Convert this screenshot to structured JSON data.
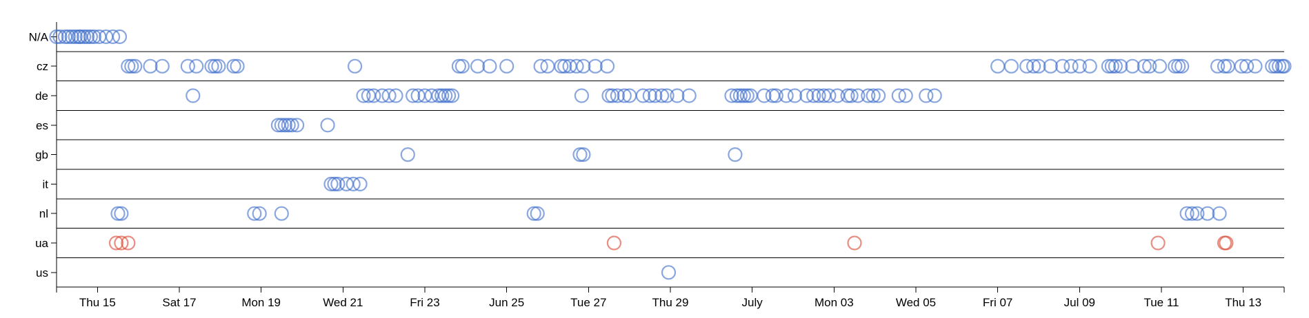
{
  "chart_data": {
    "type": "scatter",
    "title": "",
    "xlabel": "",
    "ylabel": "",
    "x_axis": {
      "scale": "time",
      "domain": [
        "2023-06-14",
        "2023-07-14"
      ],
      "ticks": [
        {
          "date": "2023-06-15",
          "label": "Thu 15"
        },
        {
          "date": "2023-06-17",
          "label": "Sat 17"
        },
        {
          "date": "2023-06-19",
          "label": "Mon 19"
        },
        {
          "date": "2023-06-21",
          "label": "Wed 21"
        },
        {
          "date": "2023-06-23",
          "label": "Fri 23"
        },
        {
          "date": "2023-06-25",
          "label": "Jun 25"
        },
        {
          "date": "2023-06-27",
          "label": "Tue 27"
        },
        {
          "date": "2023-06-29",
          "label": "Thu 29"
        },
        {
          "date": "2023-07-01",
          "label": "July"
        },
        {
          "date": "2023-07-03",
          "label": "Mon 03"
        },
        {
          "date": "2023-07-05",
          "label": "Wed 05"
        },
        {
          "date": "2023-07-07",
          "label": "Fri 07"
        },
        {
          "date": "2023-07-09",
          "label": "Jul 09"
        },
        {
          "date": "2023-07-11",
          "label": "Tue 11"
        },
        {
          "date": "2023-07-13",
          "label": "Thu 13"
        }
      ]
    },
    "categories": [
      "N/A",
      "cz",
      "de",
      "es",
      "gb",
      "it",
      "nl",
      "ua",
      "us"
    ],
    "colors": {
      "default": "#3a6bc9",
      "ua": "#d9432d"
    },
    "grid": {
      "horizontal_row_lines": true
    },
    "points": {
      "N/A": [
        "06-14 00:00",
        "06-14 02:00",
        "06-14 05:00",
        "06-14 07:00",
        "06-14 09:00",
        "06-14 11:00",
        "06-14 13:00",
        "06-14 14:00",
        "06-14 16:00",
        "06-14 18:00",
        "06-14 20:00",
        "06-14 22:00",
        "06-15 01:00",
        "06-15 05:00",
        "06-15 09:00",
        "06-15 13:00"
      ],
      "cz": [
        "06-15 18:00",
        "06-15 20:00",
        "06-15 22:00",
        "06-16 07:00",
        "06-16 14:00",
        "06-17 05:00",
        "06-17 10:00",
        "06-17 19:00",
        "06-17 21:00",
        "06-17 23:00",
        "06-18 08:00",
        "06-18 10:00",
        "06-21 07:00",
        "06-23 20:00",
        "06-23 22:00",
        "06-24 07:00",
        "06-24 14:00",
        "06-25 00:00",
        "06-25 20:00",
        "06-26 00:00",
        "06-26 08:00",
        "06-26 10:00",
        "06-26 13:00",
        "06-26 17:00",
        "06-26 21:00",
        "06-27 04:00",
        "06-27 11:00",
        "07-07 00:00",
        "07-07 08:00",
        "07-07 17:00",
        "07-07 21:00",
        "07-08 00:00",
        "07-08 07:00",
        "07-08 14:00",
        "07-08 19:00",
        "07-09 00:00",
        "07-09 06:00",
        "07-09 17:00",
        "07-09 19:00",
        "07-09 21:00",
        "07-10 00:00",
        "07-10 07:00",
        "07-10 14:00",
        "07-10 17:00",
        "07-10 23:00",
        "07-11 08:00",
        "07-11 10:00",
        "07-11 12:00",
        "07-12 09:00",
        "07-12 13:00",
        "07-12 15:00",
        "07-12 23:00",
        "07-13 02:00",
        "07-13 07:00",
        "07-13 17:00",
        "07-13 19:00",
        "07-13 21:00",
        "07-13 23:00",
        "07-14 00:00"
      ],
      "de": [
        "06-17 08:00",
        "06-21 12:00",
        "06-21 15:00",
        "06-21 18:00",
        "06-21 23:00",
        "06-22 03:00",
        "06-22 07:00",
        "06-22 17:00",
        "06-22 20:00",
        "06-23 00:00",
        "06-23 04:00",
        "06-23 08:00",
        "06-23 10:00",
        "06-23 12:00",
        "06-23 14:00",
        "06-23 16:00",
        "06-26 20:00",
        "06-27 12:00",
        "06-27 14:00",
        "06-27 17:00",
        "06-27 21:00",
        "06-28 00:00",
        "06-28 08:00",
        "06-28 12:00",
        "06-28 15:00",
        "06-28 19:00",
        "06-28 22:00",
        "06-29 04:00",
        "06-29 11:00",
        "06-30 12:00",
        "06-30 15:00",
        "06-30 17:00",
        "06-30 19:00",
        "06-30 21:00",
        "06-30 23:00",
        "07-01 07:00",
        "07-01 12:00",
        "07-01 14:00",
        "07-01 20:00",
        "07-02 01:00",
        "07-02 08:00",
        "07-02 12:00",
        "07-02 15:00",
        "07-02 18:00",
        "07-02 21:00",
        "07-03 02:00",
        "07-03 08:00",
        "07-03 10:00",
        "07-03 14:00",
        "07-03 20:00",
        "07-03 23:00",
        "07-04 02:00",
        "07-04 14:00",
        "07-04 18:00",
        "07-05 06:00",
        "07-05 11:00"
      ],
      "es": [
        "06-19 10:00",
        "06-19 12:00",
        "06-19 14:00",
        "06-19 16:00",
        "06-19 18:00",
        "06-19 21:00",
        "06-20 15:00"
      ],
      "gb": [
        "06-22 14:00",
        "06-26 19:00",
        "06-26 21:00",
        "06-30 14:00"
      ],
      "it": [
        "06-20 17:00",
        "06-20 19:00",
        "06-20 21:00",
        "06-21 02:00",
        "06-21 06:00",
        "06-21 10:00"
      ],
      "nl": [
        "06-15 12:00",
        "06-15 14:00",
        "06-18 20:00",
        "06-18 23:00",
        "06-19 12:00",
        "06-25 16:00",
        "06-25 18:00",
        "07-11 15:00",
        "07-11 18:00",
        "07-11 21:00",
        "07-12 03:00",
        "07-12 10:00"
      ],
      "ua": [
        "06-15 11:00",
        "06-15 14:00",
        "06-15 18:00",
        "06-27 15:00",
        "07-03 12:00",
        "07-10 22:00",
        "07-12 13:00",
        "07-12 14:00"
      ],
      "us": [
        "06-28 23:00"
      ]
    }
  }
}
